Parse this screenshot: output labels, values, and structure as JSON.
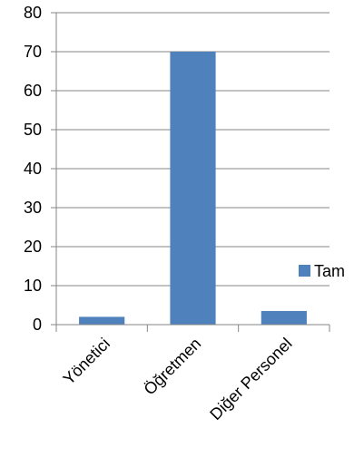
{
  "chart_data": {
    "type": "bar",
    "categories": [
      "Yönetici",
      "Öğretmen",
      "Diğer Personel"
    ],
    "series": [
      {
        "name": "Tam",
        "values": [
          2,
          70,
          3.5
        ],
        "color": "#4f81bd"
      }
    ],
    "ylim": [
      0,
      80
    ],
    "yticks": [
      0,
      10,
      20,
      30,
      40,
      50,
      60,
      70,
      80
    ],
    "grid": true,
    "legend_position": "right"
  }
}
